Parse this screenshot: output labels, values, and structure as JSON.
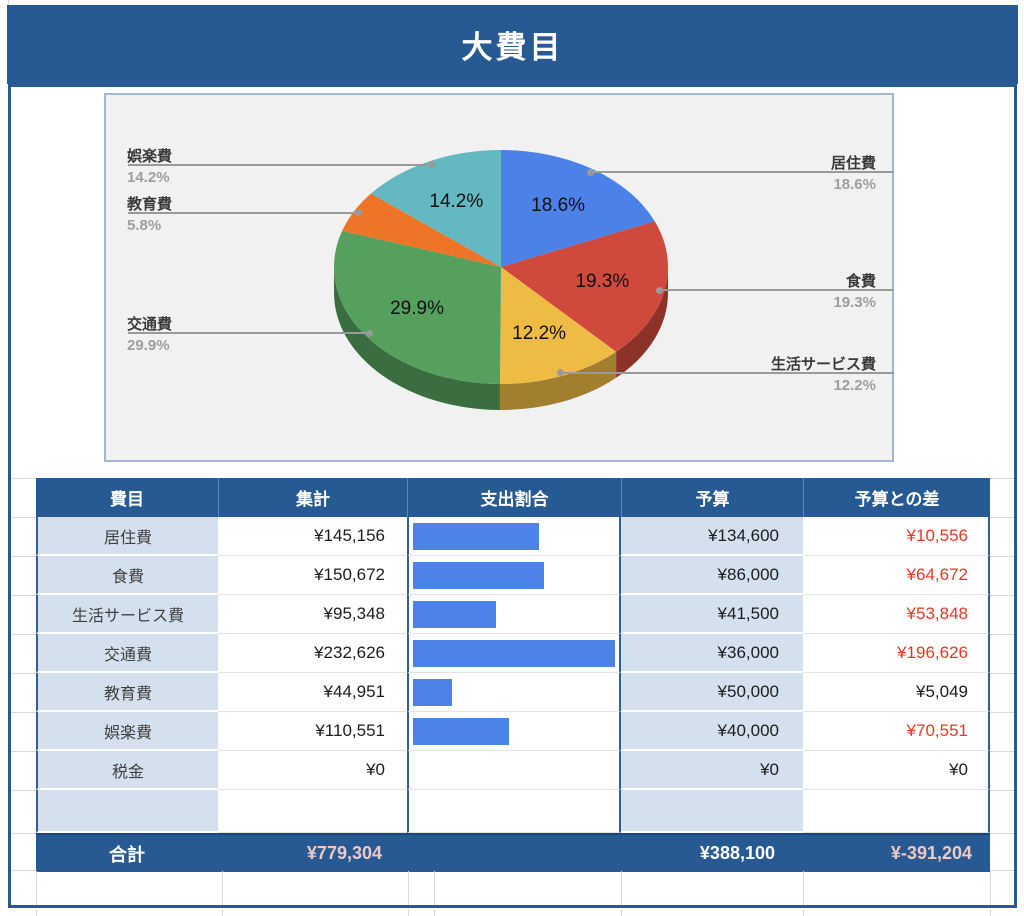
{
  "title": "大費目",
  "chart_data": {
    "type": "pie",
    "title": "大費目",
    "labels": [
      "居住費",
      "食費",
      "生活サービス費",
      "交通費",
      "教育費",
      "娯楽費"
    ],
    "values": [
      18.6,
      19.3,
      12.2,
      29.9,
      5.8,
      14.2
    ],
    "colors": [
      "#4C81E8",
      "#CF4A3D",
      "#EEBB45",
      "#56A05E",
      "#EE7428",
      "#63B8C2"
    ],
    "legend_position": "outside-leader-lines",
    "style": "3d-pie",
    "min_pct_for_inner_label": 6
  },
  "table": {
    "headers": [
      "費目",
      "集計",
      "支出割合",
      "予算",
      "予算との差"
    ],
    "rows": [
      {
        "category": "居住費",
        "total": "¥145,156",
        "total_value": 145156,
        "budget": "¥134,600",
        "diff": "¥10,556",
        "diff_red": true
      },
      {
        "category": "食費",
        "total": "¥150,672",
        "total_value": 150672,
        "budget": "¥86,000",
        "diff": "¥64,672",
        "diff_red": true
      },
      {
        "category": "生活サービス費",
        "total": "¥95,348",
        "total_value": 95348,
        "budget": "¥41,500",
        "diff": "¥53,848",
        "diff_red": true
      },
      {
        "category": "交通費",
        "total": "¥232,626",
        "total_value": 232626,
        "budget": "¥36,000",
        "diff": "¥196,626",
        "diff_red": true
      },
      {
        "category": "教育費",
        "total": "¥44,951",
        "total_value": 44951,
        "budget": "¥50,000",
        "diff": "¥5,049",
        "diff_red": false
      },
      {
        "category": "娯楽費",
        "total": "¥110,551",
        "total_value": 110551,
        "budget": "¥40,000",
        "diff": "¥70,551",
        "diff_red": true
      },
      {
        "category": "税金",
        "total": "¥0",
        "total_value": 0,
        "budget": "¥0",
        "diff": "¥0",
        "diff_red": false
      }
    ],
    "footer": {
      "label": "合計",
      "total": "¥779,304",
      "budget": "¥388,100",
      "diff": "¥-391,204"
    }
  },
  "colors": {
    "accent_blue": "#275A93",
    "light_blue_cell": "#D5E0EE",
    "bar_blue": "#4D82E8",
    "negative_red": "#EE3524",
    "footer_pink": "#EFC9C5",
    "chart_bg": "#F1F1F2"
  }
}
